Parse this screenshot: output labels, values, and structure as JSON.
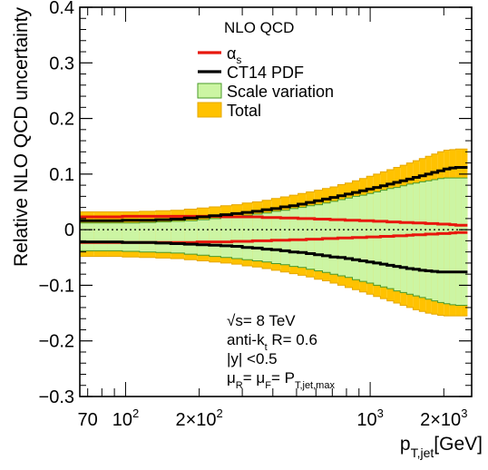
{
  "chart_data": {
    "type": "line",
    "xscale": "log",
    "xlim": [
      65,
      2600
    ],
    "ylim": [
      -0.3,
      0.4
    ],
    "xlabel": {
      "main": "p",
      "sub": "T,jet",
      "unit": "[GeV]"
    },
    "ylabel": "Relative NLO QCD uncertainty",
    "yticks": [
      {
        "v": -0.3,
        "label": "−0.3"
      },
      {
        "v": -0.2,
        "label": "−0.2"
      },
      {
        "v": -0.1,
        "label": "−0.1"
      },
      {
        "v": 0,
        "label": "0"
      },
      {
        "v": 0.1,
        "label": "0.1"
      },
      {
        "v": 0.2,
        "label": "0.2"
      },
      {
        "v": 0.3,
        "label": "0.3"
      },
      {
        "v": 0.4,
        "label": "0.4"
      }
    ],
    "xticks": [
      {
        "v": 70,
        "parts": [
          {
            "t": "70"
          }
        ]
      },
      {
        "v": 100,
        "parts": [
          {
            "t": "10"
          },
          {
            "t": "2",
            "sup": true
          }
        ]
      },
      {
        "v": 200,
        "parts": [
          {
            "t": "2×10"
          },
          {
            "t": "2",
            "sup": true
          }
        ]
      },
      {
        "v": 1000,
        "parts": [
          {
            "t": "10"
          },
          {
            "t": "3",
            "sup": true
          }
        ]
      },
      {
        "v": 2000,
        "parts": [
          {
            "t": "2×10"
          },
          {
            "t": "3",
            "sup": true
          }
        ]
      }
    ],
    "legend": {
      "title": "NLO QCD",
      "position": "top-center",
      "entries": [
        {
          "key": "alphas",
          "label": "α",
          "sub": "s",
          "kind": "line",
          "color": "#e8170d"
        },
        {
          "key": "pdf",
          "label": "CT14 PDF",
          "kind": "line",
          "color": "#000000"
        },
        {
          "key": "scale",
          "label": "Scale variation",
          "kind": "box",
          "color": "#ccf5a3",
          "edge": "#4a9a2a"
        },
        {
          "key": "total",
          "label": "Total",
          "kind": "box",
          "color": "#ffc200",
          "edge": "#e6a800"
        }
      ]
    },
    "annotations": [
      [
        {
          "t": "√s= 8 TeV"
        }
      ],
      [
        {
          "t": "anti-k"
        },
        {
          "t": "t",
          "sub": true
        },
        {
          "t": " R= 0.6"
        }
      ],
      [
        {
          "t": "|y| <0.5"
        }
      ],
      [
        {
          "t": "μ"
        },
        {
          "t": "R",
          "sub": true
        },
        {
          "t": "= μ"
        },
        {
          "t": "F",
          "sub": true
        },
        {
          "t": "= P"
        },
        {
          "t": "T,jet,max",
          "sub": true
        }
      ]
    ],
    "bin_edges": [
      64,
      74,
      84,
      97,
      114,
      133,
      153,
      174,
      196,
      220,
      245,
      272,
      300,
      330,
      362,
      395,
      430,
      468,
      507,
      548,
      592,
      638,
      686,
      737,
      790,
      846,
      905,
      967,
      1032,
      1101,
      1172,
      1248,
      1327,
      1410,
      1497,
      1588,
      1684,
      1784,
      1890,
      2000,
      2116,
      2238,
      2366,
      2500
    ],
    "series": {
      "total_up": [
        0.032,
        0.032,
        0.032,
        0.032,
        0.033,
        0.034,
        0.035,
        0.037,
        0.039,
        0.041,
        0.043,
        0.045,
        0.048,
        0.05,
        0.053,
        0.056,
        0.059,
        0.062,
        0.065,
        0.068,
        0.071,
        0.074,
        0.077,
        0.081,
        0.084,
        0.088,
        0.092,
        0.096,
        0.1,
        0.104,
        0.108,
        0.112,
        0.116,
        0.12,
        0.124,
        0.128,
        0.132,
        0.136,
        0.14,
        0.143,
        0.144,
        0.145,
        0.145
      ],
      "total_down": [
        -0.048,
        -0.048,
        -0.048,
        -0.049,
        -0.05,
        -0.051,
        -0.052,
        -0.054,
        -0.056,
        -0.058,
        -0.06,
        -0.062,
        -0.065,
        -0.067,
        -0.07,
        -0.073,
        -0.076,
        -0.079,
        -0.082,
        -0.085,
        -0.089,
        -0.092,
        -0.096,
        -0.1,
        -0.104,
        -0.108,
        -0.112,
        -0.116,
        -0.12,
        -0.124,
        -0.128,
        -0.132,
        -0.136,
        -0.14,
        -0.144,
        -0.147,
        -0.15,
        -0.152,
        -0.154,
        -0.155,
        -0.155,
        -0.155,
        -0.155
      ],
      "scale_up": [
        0.012,
        0.012,
        0.012,
        0.012,
        0.013,
        0.014,
        0.015,
        0.016,
        0.018,
        0.02,
        0.022,
        0.024,
        0.026,
        0.028,
        0.03,
        0.033,
        0.035,
        0.038,
        0.04,
        0.043,
        0.045,
        0.048,
        0.051,
        0.054,
        0.057,
        0.06,
        0.062,
        0.065,
        0.068,
        0.071,
        0.074,
        0.076,
        0.079,
        0.082,
        0.084,
        0.086,
        0.088,
        0.09,
        0.092,
        0.093,
        0.093,
        0.093,
        0.093
      ],
      "scale_down": [
        -0.038,
        -0.038,
        -0.038,
        -0.039,
        -0.04,
        -0.041,
        -0.042,
        -0.044,
        -0.046,
        -0.048,
        -0.05,
        -0.052,
        -0.054,
        -0.056,
        -0.058,
        -0.061,
        -0.063,
        -0.066,
        -0.068,
        -0.071,
        -0.074,
        -0.077,
        -0.08,
        -0.083,
        -0.086,
        -0.09,
        -0.093,
        -0.096,
        -0.1,
        -0.103,
        -0.106,
        -0.11,
        -0.113,
        -0.116,
        -0.119,
        -0.122,
        -0.125,
        -0.128,
        -0.131,
        -0.133,
        -0.135,
        -0.136,
        -0.136
      ],
      "pdf_up": [
        0.016,
        0.016,
        0.016,
        0.017,
        0.017,
        0.018,
        0.019,
        0.021,
        0.023,
        0.025,
        0.027,
        0.029,
        0.031,
        0.033,
        0.036,
        0.038,
        0.041,
        0.043,
        0.046,
        0.049,
        0.052,
        0.055,
        0.058,
        0.061,
        0.064,
        0.067,
        0.07,
        0.073,
        0.076,
        0.079,
        0.082,
        0.085,
        0.088,
        0.091,
        0.094,
        0.097,
        0.1,
        0.103,
        0.106,
        0.109,
        0.111,
        0.112,
        0.112
      ],
      "pdf_down": [
        -0.022,
        -0.022,
        -0.022,
        -0.023,
        -0.023,
        -0.024,
        -0.025,
        -0.026,
        -0.027,
        -0.028,
        -0.029,
        -0.03,
        -0.032,
        -0.033,
        -0.035,
        -0.036,
        -0.038,
        -0.04,
        -0.041,
        -0.043,
        -0.045,
        -0.047,
        -0.049,
        -0.05,
        -0.052,
        -0.054,
        -0.056,
        -0.058,
        -0.06,
        -0.062,
        -0.064,
        -0.066,
        -0.068,
        -0.07,
        -0.071,
        -0.073,
        -0.074,
        -0.075,
        -0.076,
        -0.076,
        -0.076,
        -0.076,
        -0.076
      ],
      "alphas_up": [
        0.023,
        0.023,
        0.023,
        0.024,
        0.024,
        0.024,
        0.024,
        0.024,
        0.024,
        0.024,
        0.023,
        0.023,
        0.023,
        0.023,
        0.022,
        0.022,
        0.021,
        0.021,
        0.02,
        0.02,
        0.019,
        0.019,
        0.018,
        0.018,
        0.017,
        0.017,
        0.016,
        0.016,
        0.015,
        0.015,
        0.014,
        0.014,
        0.013,
        0.013,
        0.012,
        0.012,
        0.011,
        0.011,
        0.01,
        0.01,
        0.009,
        0.008,
        0.008
      ],
      "alphas_down": [
        -0.023,
        -0.023,
        -0.023,
        -0.023,
        -0.023,
        -0.023,
        -0.023,
        -0.023,
        -0.022,
        -0.022,
        -0.022,
        -0.021,
        -0.021,
        -0.02,
        -0.02,
        -0.019,
        -0.019,
        -0.018,
        -0.018,
        -0.017,
        -0.017,
        -0.016,
        -0.016,
        -0.015,
        -0.015,
        -0.014,
        -0.014,
        -0.013,
        -0.013,
        -0.012,
        -0.012,
        -0.011,
        -0.011,
        -0.01,
        -0.009,
        -0.009,
        -0.008,
        -0.008,
        -0.007,
        -0.007,
        -0.006,
        -0.005,
        -0.005
      ]
    },
    "zero_line": true
  }
}
